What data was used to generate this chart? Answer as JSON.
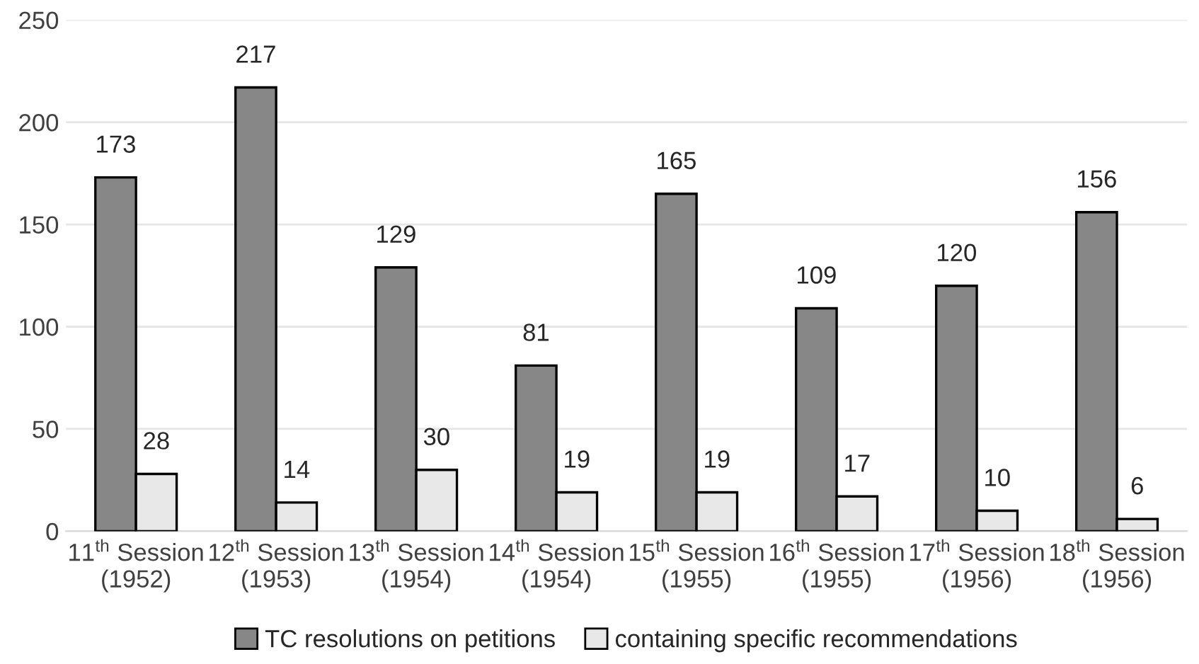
{
  "chart_data": {
    "type": "bar",
    "categories": [
      "11$^{th}$ Session\n(1952)",
      "12$^{th}$ Session\n(1953)",
      "13$^{th}$ Session\n(1954)",
      "14$^{th}$ Session\n(1954)",
      "15$^{th}$ Session\n(1955)",
      "16$^{th}$ Session\n(1955)",
      "17$^{th}$ Session\n(1956)",
      "18$^{th}$ Session\n(1956)"
    ],
    "series": [
      {
        "name": "TC resolutions on petitions",
        "color": "#878787",
        "values": [
          173,
          217,
          129,
          81,
          165,
          109,
          120,
          156
        ]
      },
      {
        "name": "containing specific recommendations",
        "color": "#e8e8e8",
        "values": [
          28,
          14,
          30,
          19,
          19,
          17,
          10,
          6
        ]
      }
    ],
    "ylim": [
      0,
      250
    ],
    "yticks": [
      0,
      50,
      100,
      150,
      200,
      250
    ],
    "grid": "y",
    "legend": "bottom",
    "data_labels": true
  }
}
